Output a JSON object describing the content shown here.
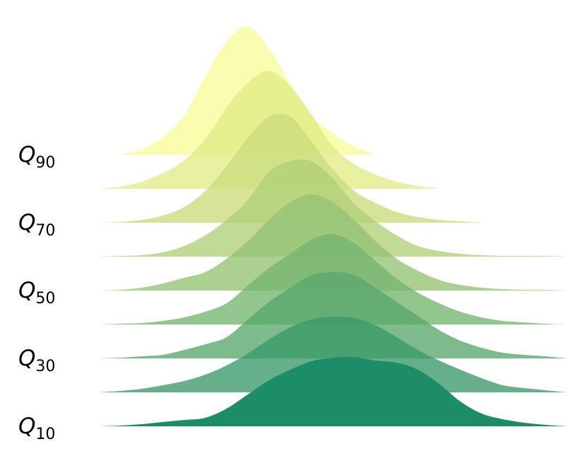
{
  "chart_data": {
    "type": "ridgeline",
    "categories": [
      "Q10",
      null,
      "Q30",
      null,
      "Q50",
      null,
      "Q70",
      null,
      "Q90"
    ],
    "x": [
      0,
      1,
      2,
      3,
      4,
      5,
      6,
      7,
      8,
      9,
      10,
      11,
      12,
      13,
      14,
      15,
      16,
      17,
      18,
      19,
      20,
      21,
      22
    ],
    "xlim": [
      0,
      22
    ],
    "series": [
      {
        "color": "#1d8c68",
        "values": [
          0,
          1,
          3,
          6,
          9,
          12,
          25,
          45,
          65,
          80,
          92,
          97,
          98,
          93,
          90,
          80,
          60,
          35,
          18,
          10,
          5,
          2,
          0
        ]
      },
      {
        "color": "#3a9a69",
        "values": [
          0,
          2,
          5,
          10,
          16,
          25,
          38,
          55,
          75,
          92,
          103,
          107,
          105,
          95,
          78,
          60,
          45,
          32,
          20,
          10,
          6,
          3,
          0
        ]
      },
      {
        "color": "#58a86c",
        "values": [
          0,
          1,
          3,
          5,
          12,
          20,
          30,
          55,
          80,
          100,
          118,
          122,
          118,
          100,
          80,
          60,
          40,
          25,
          15,
          8,
          5,
          3,
          0
        ]
      },
      {
        "color": "#75b56f",
        "values": [
          0,
          1,
          2,
          5,
          10,
          18,
          30,
          55,
          80,
          100,
          120,
          128,
          115,
          90,
          65,
          45,
          30,
          18,
          10,
          5,
          3,
          1,
          0
        ]
      },
      {
        "color": "#93c373",
        "values": [
          0,
          1,
          4,
          10,
          18,
          26,
          45,
          70,
          100,
          125,
          136,
          125,
          100,
          70,
          45,
          28,
          15,
          8,
          4,
          2,
          1,
          1,
          0
        ]
      },
      {
        "color": "#b0d077",
        "values": [
          0,
          1,
          2,
          6,
          15,
          30,
          52,
          80,
          120,
          135,
          135,
          110,
          75,
          50,
          30,
          15,
          8,
          4,
          2,
          1,
          1,
          1,
          0
        ]
      },
      {
        "color": "#cbdd7d",
        "values": [
          0,
          1,
          4,
          10,
          22,
          45,
          80,
          120,
          150,
          150,
          115,
          75,
          45,
          28,
          15,
          8,
          4,
          2,
          0,
          null,
          null,
          null,
          null
        ]
      },
      {
        "color": "#e2ec86",
        "values": [
          0,
          3,
          10,
          22,
          40,
          70,
          115,
          150,
          167,
          145,
          105,
          60,
          35,
          20,
          10,
          4,
          0,
          null,
          null,
          null,
          null,
          null,
          null
        ]
      },
      {
        "color": "#f8fb98",
        "values": [
          null,
          0,
          8,
          25,
          55,
          110,
          160,
          181,
          150,
          100,
          55,
          30,
          12,
          0,
          null,
          null,
          null,
          null,
          null,
          null,
          null,
          null,
          null
        ]
      }
    ]
  }
}
